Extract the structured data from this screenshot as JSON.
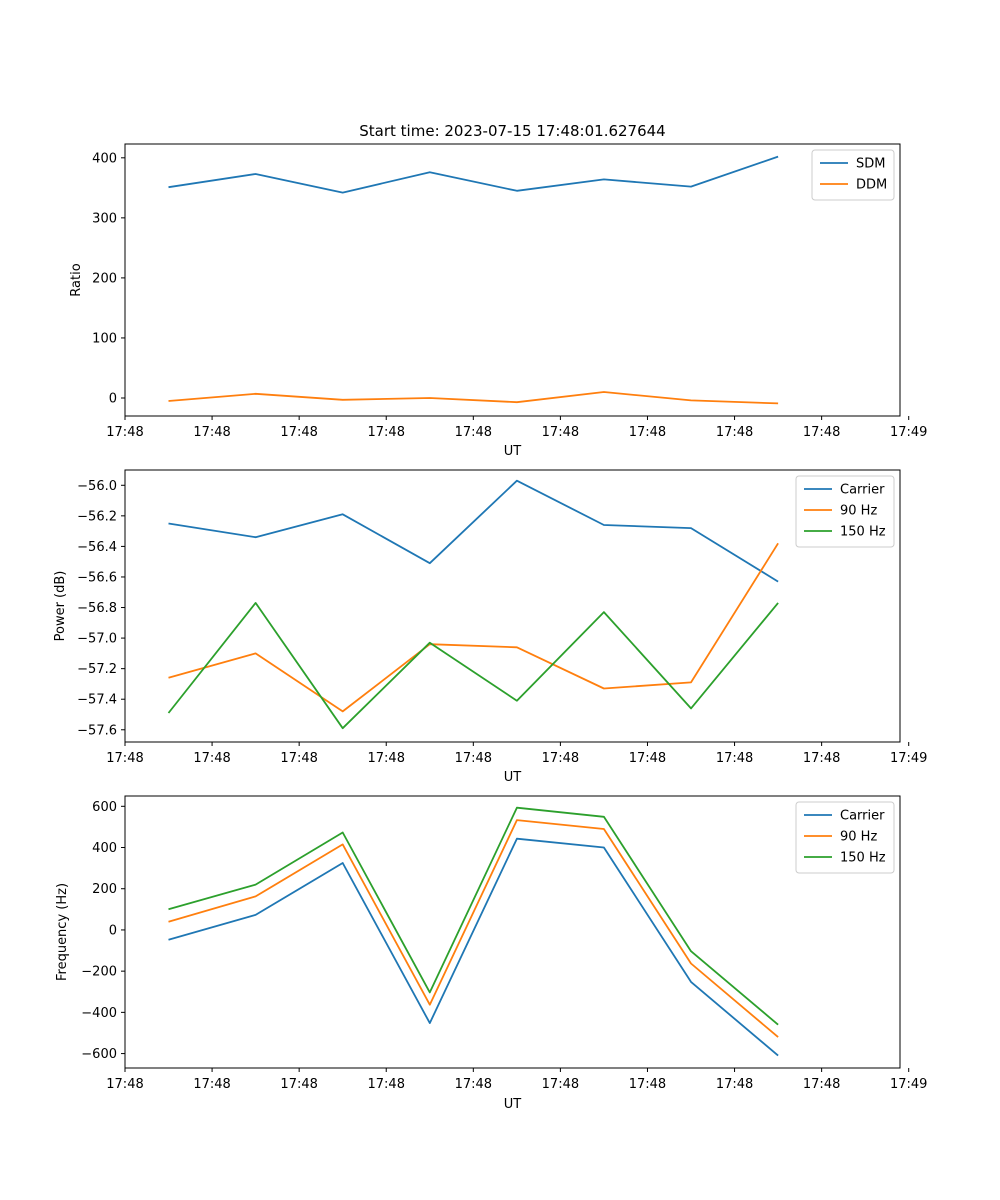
{
  "chart_data": [
    {
      "type": "line",
      "title": "Start time: 2023-07-15 17:48:01.627644",
      "xlabel": "UT",
      "ylabel": "Ratio",
      "x": [
        1,
        2,
        3,
        4,
        5,
        6,
        7,
        8
      ],
      "xlim": [
        0.5,
        9.4
      ],
      "ylim": [
        -30,
        423
      ],
      "xticks": [
        0.5,
        1.5,
        2.5,
        3.5,
        4.5,
        5.5,
        6.5,
        7.5,
        8.5,
        9.5
      ],
      "xtick_labels": [
        "17:48",
        "17:48",
        "17:48",
        "17:48",
        "17:48",
        "17:48",
        "17:48",
        "17:48",
        "17:48",
        "17:49"
      ],
      "yticks": [
        0,
        100,
        200,
        300,
        400
      ],
      "ytick_labels": [
        "0",
        "100",
        "200",
        "300",
        "400"
      ],
      "legend_position": "top-right",
      "series": [
        {
          "name": "SDM",
          "color": "#1f77b4",
          "values": [
            351,
            373,
            342,
            376,
            345,
            364,
            352,
            402
          ]
        },
        {
          "name": "DDM",
          "color": "#ff7f0e",
          "values": [
            -5,
            7,
            -3,
            0,
            -7,
            10,
            -4,
            -9
          ]
        }
      ]
    },
    {
      "type": "line",
      "title": "",
      "xlabel": "UT",
      "ylabel": "Power (dB)",
      "x": [
        1,
        2,
        3,
        4,
        5,
        6,
        7,
        8
      ],
      "xlim": [
        0.5,
        9.4
      ],
      "ylim": [
        -57.68,
        -55.9
      ],
      "xticks": [
        0.5,
        1.5,
        2.5,
        3.5,
        4.5,
        5.5,
        6.5,
        7.5,
        8.5,
        9.5
      ],
      "xtick_labels": [
        "17:48",
        "17:48",
        "17:48",
        "17:48",
        "17:48",
        "17:48",
        "17:48",
        "17:48",
        "17:48",
        "17:49"
      ],
      "yticks": [
        -57.6,
        -57.4,
        -57.2,
        -57.0,
        -56.8,
        -56.6,
        -56.4,
        -56.2,
        -56.0
      ],
      "ytick_labels": [
        "−57.6",
        "−57.4",
        "−57.2",
        "−57.0",
        "−56.8",
        "−56.6",
        "−56.4",
        "−56.2",
        "−56.0"
      ],
      "legend_position": "top-right",
      "series": [
        {
          "name": "Carrier",
          "color": "#1f77b4",
          "values": [
            -56.25,
            -56.34,
            -56.19,
            -56.51,
            -55.97,
            -56.26,
            -56.28,
            -56.63
          ]
        },
        {
          "name": "90 Hz",
          "color": "#ff7f0e",
          "values": [
            -57.26,
            -57.1,
            -57.48,
            -57.04,
            -57.06,
            -57.33,
            -57.29,
            -56.38
          ]
        },
        {
          "name": "150 Hz",
          "color": "#2ca02c",
          "values": [
            -57.49,
            -56.77,
            -57.59,
            -57.03,
            -57.41,
            -56.83,
            -57.46,
            -56.77
          ]
        }
      ]
    },
    {
      "type": "line",
      "title": "",
      "xlabel": "UT",
      "ylabel": "Frequency (Hz)",
      "x": [
        1,
        2,
        3,
        4,
        5,
        6,
        7,
        8
      ],
      "xlim": [
        0.5,
        9.4
      ],
      "ylim": [
        -670,
        650
      ],
      "xticks": [
        0.5,
        1.5,
        2.5,
        3.5,
        4.5,
        5.5,
        6.5,
        7.5,
        8.5,
        9.5
      ],
      "xtick_labels": [
        "17:48",
        "17:48",
        "17:48",
        "17:48",
        "17:48",
        "17:48",
        "17:48",
        "17:48",
        "17:48",
        "17:49"
      ],
      "yticks": [
        -600,
        -400,
        -200,
        0,
        200,
        400,
        600
      ],
      "ytick_labels": [
        "−600",
        "−400",
        "−200",
        "0",
        "200",
        "400",
        "600"
      ],
      "legend_position": "top-right",
      "series": [
        {
          "name": "Carrier",
          "color": "#1f77b4",
          "values": [
            -48,
            73,
            325,
            -452,
            443,
            400,
            -252,
            -610
          ]
        },
        {
          "name": "90 Hz",
          "color": "#ff7f0e",
          "values": [
            40,
            163,
            415,
            -363,
            533,
            490,
            -163,
            -520
          ]
        },
        {
          "name": "150 Hz",
          "color": "#2ca02c",
          "values": [
            100,
            220,
            473,
            -303,
            593,
            549,
            -103,
            -460
          ]
        }
      ]
    }
  ]
}
